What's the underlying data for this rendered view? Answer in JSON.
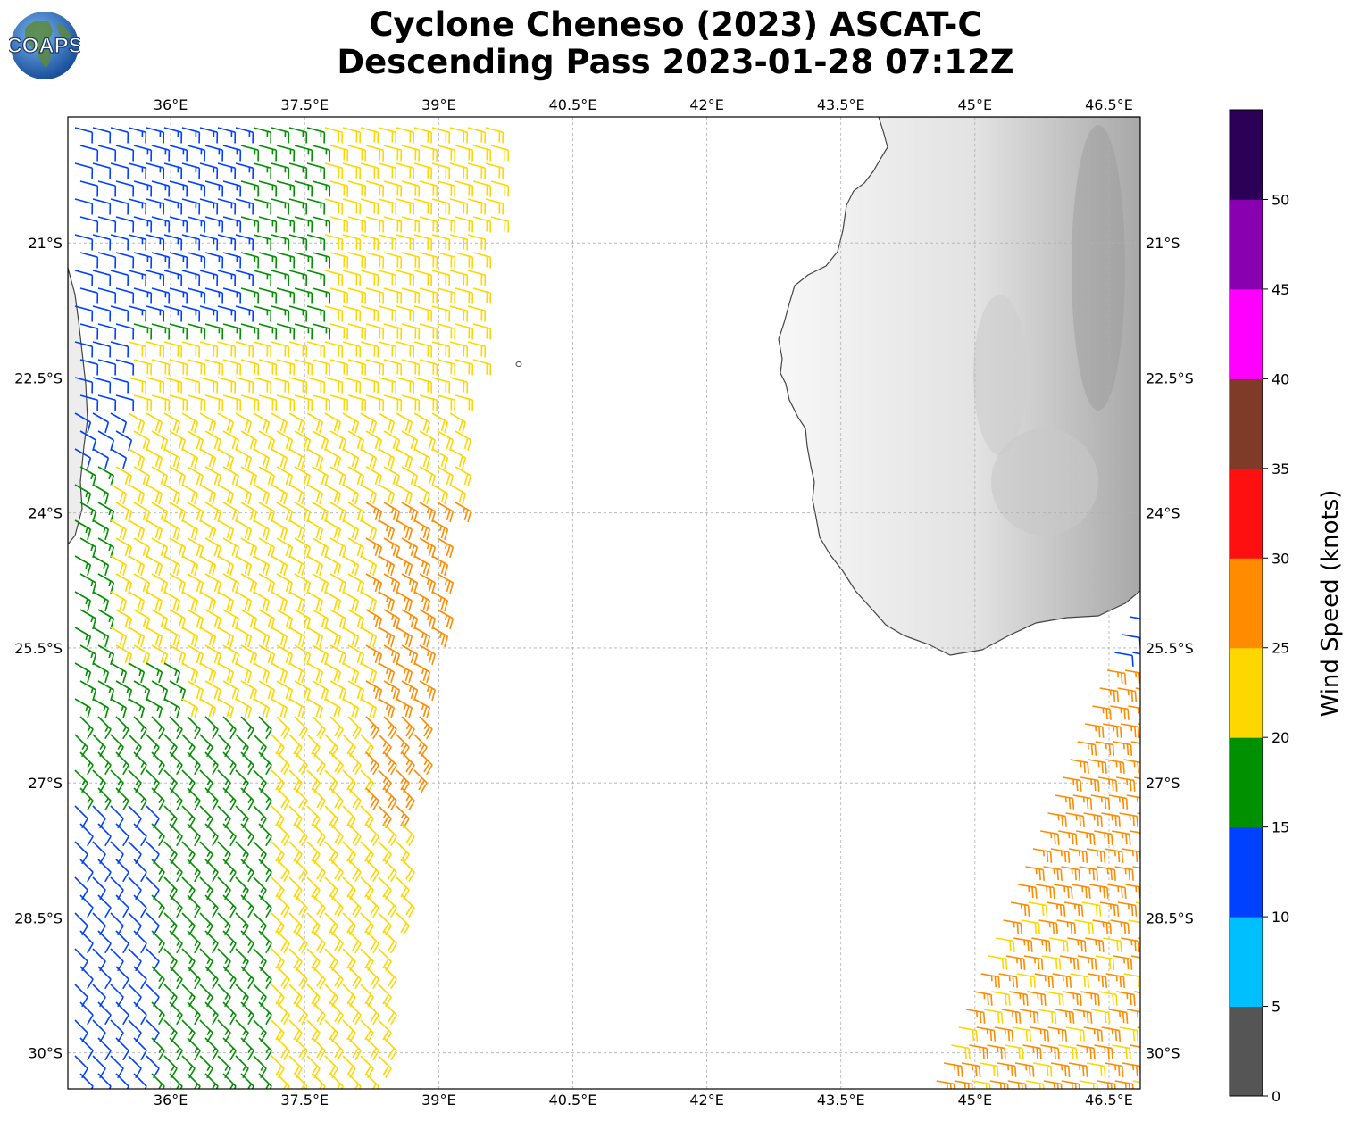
{
  "title_line1": "Cyclone Cheneso (2023) ASCAT-C",
  "title_line2": "Descending Pass 2023-01-28 07:12Z",
  "logo_text": "COAPS",
  "map": {
    "lon_range": [
      34.85,
      46.85
    ],
    "lat_range": [
      -30.4,
      -19.6
    ],
    "lon_ticks": [
      "36°E",
      "37.5°E",
      "39°E",
      "40.5°E",
      "42°E",
      "43.5°E",
      "45°E",
      "46.5°E"
    ],
    "lat_ticks": [
      "21°S",
      "22.5°S",
      "24°S",
      "25.5°S",
      "27°S",
      "28.5°S",
      "30°S"
    ],
    "land_color": "#e4e4e4",
    "grid_color": "#b0b0b0"
  },
  "colorbar": {
    "label": "Wind Speed (knots)",
    "tick_labels": [
      "0",
      "5",
      "10",
      "15",
      "20",
      "25",
      "30",
      "35",
      "40",
      "45",
      "50"
    ],
    "bins": [
      {
        "min": 0,
        "max": 5,
        "color": "#555555"
      },
      {
        "min": 5,
        "max": 10,
        "color": "#00bfff"
      },
      {
        "min": 10,
        "max": 15,
        "color": "#0040ff"
      },
      {
        "min": 15,
        "max": 20,
        "color": "#009000"
      },
      {
        "min": 20,
        "max": 25,
        "color": "#ffd700"
      },
      {
        "min": 25,
        "max": 30,
        "color": "#ff8c00"
      },
      {
        "min": 30,
        "max": 35,
        "color": "#ff1010"
      },
      {
        "min": 35,
        "max": 40,
        "color": "#803a28"
      },
      {
        "min": 40,
        "max": 45,
        "color": "#ff00ff"
      },
      {
        "min": 45,
        "max": 50,
        "color": "#8800b0"
      },
      {
        "min": 50,
        "max": 55,
        "color": "#2d0058"
      }
    ]
  },
  "chart_data": {
    "type": "wind_barbs_map",
    "units": "knots",
    "swaths": [
      {
        "name": "west swath",
        "lon_west": 34.85,
        "lon_east_top": 39.9,
        "lon_east_bottom": 38.6,
        "lat_top": -19.6,
        "lat_bottom": -30.4,
        "speed_range_kt": [
          10,
          30
        ],
        "mean_direction_deg": 135
      },
      {
        "name": "east swath",
        "lon_west_top": 46.8,
        "lon_west_bottom": 44.9,
        "lon_east": 46.85,
        "lat_top": -25.2,
        "lat_bottom": -30.4,
        "speed_range_kt": [
          10,
          35
        ],
        "mean_direction_deg": 100
      }
    ]
  }
}
